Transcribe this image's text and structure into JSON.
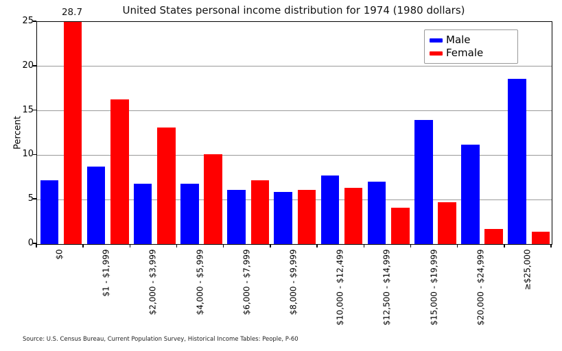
{
  "chart_data": {
    "type": "bar",
    "title": "United States personal income distribution for 1974 (1980 dollars)",
    "xlabel": "",
    "ylabel": "Percent",
    "ylim": [
      0,
      25
    ],
    "yticks": [
      0,
      5,
      10,
      15,
      20,
      25
    ],
    "grid": true,
    "legend_position": "upper right",
    "categories": [
      "$0",
      "$1 - $1,999",
      "$2,000 - $3,999",
      "$4,000 - $5,999",
      "$6,000 - $7,999",
      "$8,000 - $9,999",
      "$10,000 - $12,499",
      "$12,500 - $14,999",
      "$15,000 - $19,999",
      "$20,000 - $24,999",
      "≥$25,000"
    ],
    "series": [
      {
        "name": "Male",
        "color": "#0000ff",
        "values": [
          7.2,
          8.7,
          6.8,
          6.8,
          6.1,
          5.9,
          7.7,
          7.0,
          14.0,
          11.2,
          18.6
        ]
      },
      {
        "name": "Female",
        "color": "#ff0000",
        "values": [
          28.7,
          16.3,
          13.1,
          10.1,
          7.2,
          6.1,
          6.3,
          4.1,
          4.7,
          1.7,
          1.4
        ]
      }
    ],
    "annotations": [
      {
        "text": "28.7",
        "series": "Female",
        "category": "$0"
      }
    ],
    "source": "Source: U.S. Census Bureau, Current Population Survey, Historical Income Tables: People, P-60"
  }
}
